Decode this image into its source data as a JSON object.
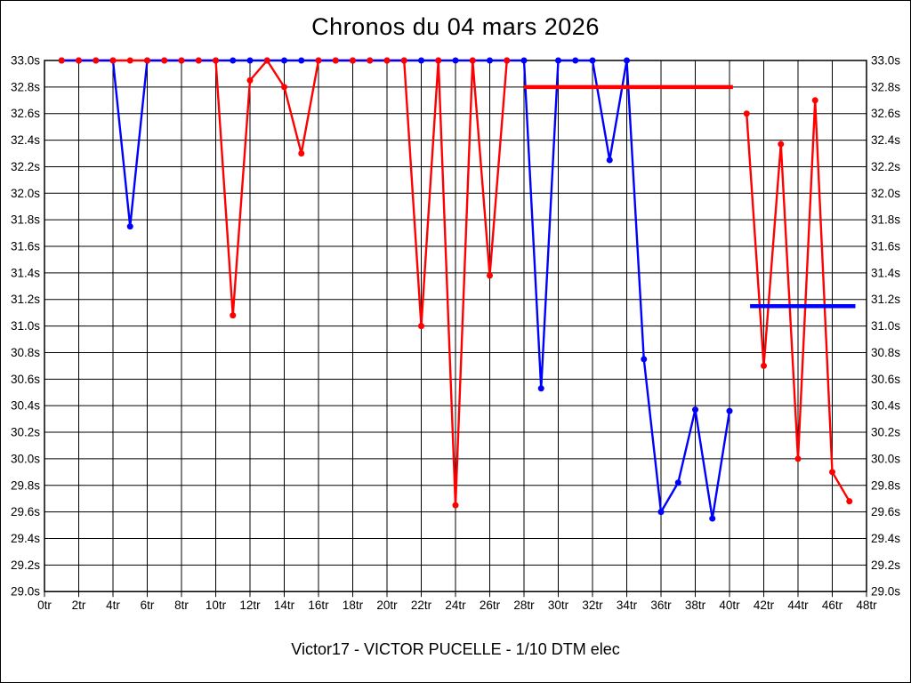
{
  "title": "Chronos du 04 mars 2026",
  "subtitle": "Victor17 - VICTOR PUCELLE - 1/10 DTM elec",
  "colors": {
    "red_series": "#ff0000",
    "blue_series": "#0000ff",
    "grid": "#000000",
    "background": "#ffffff"
  },
  "chart_data": {
    "type": "line",
    "title": "Chronos du 04 mars 2026",
    "xlabel": "",
    "ylabel": "",
    "x_unit": "tr",
    "y_unit": "s",
    "xlim": [
      0,
      48
    ],
    "ylim": [
      29.0,
      33.0
    ],
    "x_tick_step": 2,
    "y_tick_step": 0.2,
    "grid": true,
    "legend": "none",
    "x_ticks": [
      "0tr",
      "2tr",
      "4tr",
      "6tr",
      "8tr",
      "10tr",
      "12tr",
      "14tr",
      "16tr",
      "18tr",
      "20tr",
      "22tr",
      "24tr",
      "26tr",
      "28tr",
      "30tr",
      "32tr",
      "34tr",
      "36tr",
      "38tr",
      "40tr",
      "42tr",
      "44tr",
      "46tr",
      "48tr"
    ],
    "y_ticks": [
      "33.0s",
      "32.8s",
      "32.6s",
      "32.4s",
      "32.2s",
      "32.0s",
      "31.8s",
      "31.6s",
      "31.4s",
      "31.2s",
      "31.0s",
      "30.8s",
      "30.6s",
      "30.4s",
      "30.2s",
      "30.0s",
      "29.8s",
      "29.6s",
      "29.4s",
      "29.2s",
      "29.0s"
    ],
    "series": [
      {
        "name": "red-run",
        "color": "#ff0000",
        "segments": [
          [
            [
              1,
              33.0
            ],
            [
              2,
              33.0
            ],
            [
              3,
              33.0
            ],
            [
              4,
              33.0
            ],
            [
              5,
              33.0
            ],
            [
              6,
              33.0
            ],
            [
              7,
              33.0
            ],
            [
              8,
              33.0
            ],
            [
              9,
              33.0
            ],
            [
              10,
              33.0
            ],
            [
              11,
              31.08
            ],
            [
              12,
              32.85
            ],
            [
              13,
              33.0
            ],
            [
              14,
              32.8
            ],
            [
              15,
              32.3
            ],
            [
              16,
              33.0
            ],
            [
              17,
              33.0
            ],
            [
              18,
              33.0
            ],
            [
              19,
              33.0
            ],
            [
              20,
              33.0
            ],
            [
              21,
              33.0
            ],
            [
              22,
              31.0
            ],
            [
              23,
              33.0
            ],
            [
              24,
              29.65
            ],
            [
              25,
              33.0
            ],
            [
              26,
              31.38
            ],
            [
              27,
              33.0
            ]
          ],
          [
            [
              41,
              32.6
            ],
            [
              42,
              30.7
            ],
            [
              43,
              32.37
            ],
            [
              44,
              30.0
            ],
            [
              45,
              32.7
            ],
            [
              46,
              29.9
            ],
            [
              47,
              29.68
            ]
          ]
        ]
      },
      {
        "name": "blue-run",
        "color": "#0000ff",
        "segments": [
          [
            [
              1,
              33.0
            ],
            [
              2,
              33.0
            ],
            [
              3,
              33.0
            ],
            [
              4,
              33.0
            ],
            [
              5,
              31.75
            ],
            [
              6,
              33.0
            ],
            [
              7,
              33.0
            ],
            [
              8,
              33.0
            ],
            [
              9,
              33.0
            ],
            [
              10,
              33.0
            ],
            [
              11,
              33.0
            ],
            [
              12,
              33.0
            ],
            [
              13,
              33.0
            ],
            [
              14,
              33.0
            ],
            [
              15,
              33.0
            ],
            [
              16,
              33.0
            ],
            [
              17,
              33.0
            ],
            [
              18,
              33.0
            ],
            [
              19,
              33.0
            ],
            [
              20,
              33.0
            ],
            [
              21,
              33.0
            ],
            [
              22,
              33.0
            ],
            [
              23,
              33.0
            ],
            [
              24,
              33.0
            ],
            [
              25,
              33.0
            ],
            [
              26,
              33.0
            ],
            [
              27,
              33.0
            ],
            [
              28,
              33.0
            ],
            [
              29,
              30.53
            ],
            [
              30,
              33.0
            ],
            [
              31,
              33.0
            ],
            [
              32,
              33.0
            ],
            [
              33,
              32.25
            ],
            [
              34,
              33.0
            ],
            [
              35,
              30.75
            ],
            [
              36,
              29.6
            ],
            [
              37,
              29.82
            ],
            [
              38,
              30.37
            ],
            [
              39,
              29.55
            ],
            [
              40,
              30.36
            ]
          ]
        ]
      }
    ],
    "reference_lines": [
      {
        "name": "red-average-line",
        "color": "#ff0000",
        "y": 32.8,
        "x_start": 28.0,
        "x_end": 40.2
      },
      {
        "name": "blue-average-line",
        "color": "#0000ff",
        "y": 31.15,
        "x_start": 41.2,
        "x_end": 47.35
      }
    ]
  }
}
